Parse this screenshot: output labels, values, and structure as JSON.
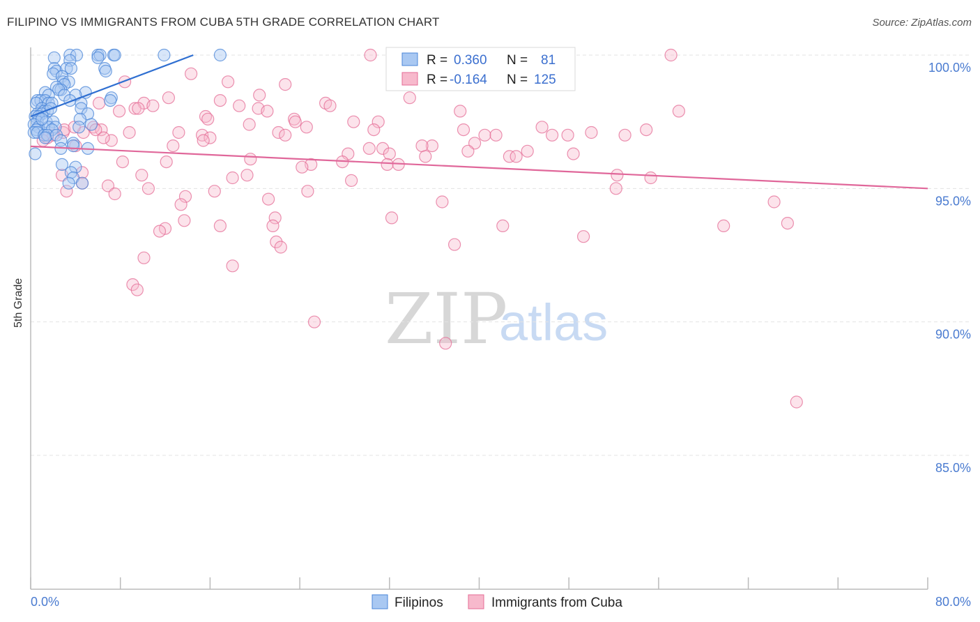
{
  "chart_data": {
    "type": "scatter",
    "title": "FILIPINO VS IMMIGRANTS FROM CUBA 5TH GRADE CORRELATION CHART",
    "source": "Source: ZipAtlas.com",
    "xlabel": "",
    "ylabel": "5th Grade",
    "xlim": [
      0.0,
      80.0
    ],
    "ylim": [
      80.5,
      100.5
    ],
    "x_tick_labels": [
      "0.0%",
      "80.0%"
    ],
    "y_ticks": [
      85.0,
      90.0,
      95.0,
      100.0
    ],
    "y_tick_labels": [
      "85.0%",
      "90.0%",
      "95.0%",
      "100.0%"
    ],
    "watermark": {
      "part1": "ZIP",
      "part2": "atlas"
    },
    "legend": [
      {
        "r_label": "R =",
        "r_value": "0.360",
        "n_label": "N =",
        "n_value": "81"
      },
      {
        "r_label": "R =",
        "r_value": "-0.164",
        "n_label": "N =",
        "n_value": "125"
      }
    ],
    "series": [
      {
        "name": "Filipinos",
        "color": "#4a86d8",
        "fill": "#a9c8f2",
        "trend": {
          "x": [
            0.0,
            14.5
          ],
          "y": [
            97.7,
            100.0
          ]
        },
        "points": [
          [
            3.5,
            100
          ],
          [
            4.1,
            100
          ],
          [
            6.0,
            100
          ],
          [
            6.2,
            100
          ],
          [
            7.4,
            100
          ],
          [
            7.5,
            100
          ],
          [
            11.9,
            100
          ],
          [
            16.9,
            100
          ],
          [
            2.1,
            99.9
          ],
          [
            3.5,
            99.8
          ],
          [
            2.1,
            99.5
          ],
          [
            2.3,
            99.4
          ],
          [
            3.2,
            99.5
          ],
          [
            3.6,
            99.5
          ],
          [
            6.6,
            99.5
          ],
          [
            6.7,
            99.4
          ],
          [
            2.0,
            99.3
          ],
          [
            2.8,
            99.2
          ],
          [
            2.9,
            99.0
          ],
          [
            3.4,
            99.0
          ],
          [
            3.0,
            98.9
          ],
          [
            2.3,
            98.8
          ],
          [
            2.7,
            98.7
          ],
          [
            2.5,
            98.7
          ],
          [
            1.3,
            98.6
          ],
          [
            4.9,
            98.6
          ],
          [
            3.0,
            98.5
          ],
          [
            1.6,
            98.5
          ],
          [
            4.0,
            98.5
          ],
          [
            7.2,
            98.4
          ],
          [
            7.1,
            98.3
          ],
          [
            0.6,
            98.3
          ],
          [
            0.9,
            98.3
          ],
          [
            1.3,
            98.3
          ],
          [
            1.6,
            98.2
          ],
          [
            1.9,
            98.2
          ],
          [
            3.5,
            98.3
          ],
          [
            4.5,
            98.2
          ],
          [
            0.5,
            98.2
          ],
          [
            1.0,
            98.0
          ],
          [
            1.2,
            97.9
          ],
          [
            1.5,
            97.9
          ],
          [
            4.5,
            98.0
          ],
          [
            0.6,
            97.8
          ],
          [
            1.0,
            97.8
          ],
          [
            0.4,
            97.7
          ],
          [
            0.7,
            97.7
          ],
          [
            5.1,
            97.8
          ],
          [
            4.4,
            97.6
          ],
          [
            0.6,
            97.5
          ],
          [
            1.4,
            97.5
          ],
          [
            2.0,
            97.5
          ],
          [
            0.3,
            97.4
          ],
          [
            0.7,
            97.3
          ],
          [
            1.6,
            97.3
          ],
          [
            2.2,
            97.3
          ],
          [
            0.5,
            97.2
          ],
          [
            1.9,
            97.2
          ],
          [
            4.3,
            97.3
          ],
          [
            5.4,
            97.4
          ],
          [
            0.3,
            97.1
          ],
          [
            0.6,
            97.1
          ],
          [
            1.2,
            97.0
          ],
          [
            1.5,
            97.0
          ],
          [
            2.3,
            97.0
          ],
          [
            1.3,
            96.9
          ],
          [
            2.7,
            96.8
          ],
          [
            3.8,
            96.7
          ],
          [
            2.7,
            96.5
          ],
          [
            3.8,
            96.6
          ],
          [
            5.1,
            96.5
          ],
          [
            0.4,
            96.3
          ],
          [
            2.8,
            95.9
          ],
          [
            4.0,
            95.8
          ],
          [
            3.6,
            95.6
          ],
          [
            3.8,
            95.4
          ],
          [
            4.6,
            95.2
          ],
          [
            3.4,
            95.2
          ],
          [
            1.0,
            97.6
          ],
          [
            1.8,
            98.0
          ],
          [
            6.0,
            99.9
          ]
        ]
      },
      {
        "name": "Immigrants from Cuba",
        "color": "#e46c96",
        "fill": "#f7b9cc",
        "trend": {
          "x": [
            0.0,
            80.0
          ],
          "y": [
            96.58,
            95.0
          ]
        },
        "points": [
          [
            30.3,
            100
          ],
          [
            57.1,
            100
          ],
          [
            14.3,
            99.3
          ],
          [
            8.4,
            99.0
          ],
          [
            17.6,
            99.0
          ],
          [
            22.7,
            98.9
          ],
          [
            20.4,
            98.5
          ],
          [
            12.3,
            98.4
          ],
          [
            33.8,
            98.4
          ],
          [
            6.1,
            98.2
          ],
          [
            10.1,
            98.2
          ],
          [
            10.9,
            98.1
          ],
          [
            16.9,
            98.3
          ],
          [
            18.6,
            98.1
          ],
          [
            26.3,
            98.2
          ],
          [
            9.3,
            98.0
          ],
          [
            20.3,
            98.0
          ],
          [
            21.1,
            97.9
          ],
          [
            7.9,
            97.9
          ],
          [
            38.3,
            97.9
          ],
          [
            57.8,
            97.9
          ],
          [
            15.6,
            97.7
          ],
          [
            15.8,
            97.6
          ],
          [
            23.5,
            97.6
          ],
          [
            28.8,
            97.5
          ],
          [
            31.0,
            97.5
          ],
          [
            19.5,
            97.4
          ],
          [
            23.6,
            97.5
          ],
          [
            5.6,
            97.3
          ],
          [
            6.3,
            97.2
          ],
          [
            8.8,
            97.1
          ],
          [
            13.2,
            97.1
          ],
          [
            22.1,
            97.1
          ],
          [
            38.6,
            97.2
          ],
          [
            45.6,
            97.3
          ],
          [
            24.6,
            97.3
          ],
          [
            30.6,
            97.2
          ],
          [
            50.0,
            97.1
          ],
          [
            54.9,
            97.2
          ],
          [
            2.9,
            97.1
          ],
          [
            3.0,
            97.2
          ],
          [
            5.8,
            97.2
          ],
          [
            4.7,
            97.1
          ],
          [
            15.3,
            97.0
          ],
          [
            16.0,
            96.9
          ],
          [
            22.7,
            97.0
          ],
          [
            40.5,
            97.0
          ],
          [
            41.5,
            97.0
          ],
          [
            46.5,
            97.0
          ],
          [
            47.9,
            97.0
          ],
          [
            53.0,
            97.0
          ],
          [
            1.5,
            96.9
          ],
          [
            7.2,
            96.8
          ],
          [
            15.4,
            96.8
          ],
          [
            39.6,
            96.7
          ],
          [
            35.8,
            96.6
          ],
          [
            4.0,
            96.6
          ],
          [
            12.7,
            96.6
          ],
          [
            30.2,
            96.5
          ],
          [
            31.4,
            96.5
          ],
          [
            39.0,
            96.4
          ],
          [
            34.9,
            96.6
          ],
          [
            44.3,
            96.4
          ],
          [
            28.3,
            96.3
          ],
          [
            32.0,
            96.3
          ],
          [
            35.2,
            96.2
          ],
          [
            42.7,
            96.2
          ],
          [
            43.3,
            96.2
          ],
          [
            48.4,
            96.3
          ],
          [
            12.1,
            96.0
          ],
          [
            19.6,
            96.1
          ],
          [
            8.2,
            96.0
          ],
          [
            27.8,
            96.0
          ],
          [
            31.8,
            95.9
          ],
          [
            25.0,
            95.9
          ],
          [
            24.2,
            95.8
          ],
          [
            9.9,
            95.5
          ],
          [
            18.0,
            95.4
          ],
          [
            19.3,
            95.5
          ],
          [
            28.6,
            95.3
          ],
          [
            4.6,
            95.2
          ],
          [
            2.8,
            95.5
          ],
          [
            4.6,
            95.6
          ],
          [
            6.9,
            95.1
          ],
          [
            52.3,
            95.5
          ],
          [
            55.3,
            95.4
          ],
          [
            10.5,
            95.0
          ],
          [
            16.4,
            94.9
          ],
          [
            24.7,
            94.9
          ],
          [
            3.2,
            94.9
          ],
          [
            7.5,
            94.8
          ],
          [
            13.8,
            94.7
          ],
          [
            21.2,
            94.6
          ],
          [
            36.7,
            94.5
          ],
          [
            66.3,
            94.5
          ],
          [
            13.4,
            94.4
          ],
          [
            32.2,
            93.9
          ],
          [
            21.8,
            93.9
          ],
          [
            13.7,
            93.8
          ],
          [
            67.5,
            93.7
          ],
          [
            12.0,
            93.5
          ],
          [
            16.9,
            93.6
          ],
          [
            21.6,
            93.6
          ],
          [
            42.1,
            93.6
          ],
          [
            61.8,
            93.6
          ],
          [
            11.5,
            93.4
          ],
          [
            49.3,
            93.2
          ],
          [
            21.9,
            93.0
          ],
          [
            37.8,
            92.9
          ],
          [
            22.3,
            92.8
          ],
          [
            10.1,
            92.4
          ],
          [
            18.0,
            92.1
          ],
          [
            9.1,
            91.4
          ],
          [
            9.5,
            91.2
          ],
          [
            25.3,
            90.0
          ],
          [
            37.0,
            89.2
          ],
          [
            68.3,
            87.0
          ],
          [
            52.2,
            95.0
          ],
          [
            9.6,
            98.0
          ],
          [
            26.7,
            98.1
          ],
          [
            32.8,
            95.9
          ],
          [
            3.9,
            97.3
          ],
          [
            2.0,
            97.0
          ],
          [
            6.5,
            96.9
          ],
          [
            1.1,
            96.8
          ]
        ]
      }
    ]
  }
}
